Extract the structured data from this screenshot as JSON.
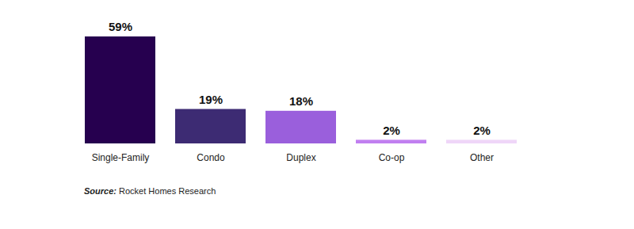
{
  "chart_data": {
    "type": "bar",
    "categories": [
      "Single-Family",
      "Condo",
      "Duplex",
      "Co-op",
      "Other"
    ],
    "values": [
      59,
      19,
      18,
      2,
      2
    ],
    "value_labels": [
      "59%",
      "19%",
      "18%",
      "2%",
      "2%"
    ],
    "colors": [
      "#26004f",
      "#3d2b73",
      "#9a5fdc",
      "#c17ff0",
      "#efd6f8"
    ],
    "ylim": [
      0,
      59
    ],
    "data_labels": true,
    "tick_labels": "x",
    "grid": false,
    "caption": "Source: Rocket Homes Research"
  }
}
